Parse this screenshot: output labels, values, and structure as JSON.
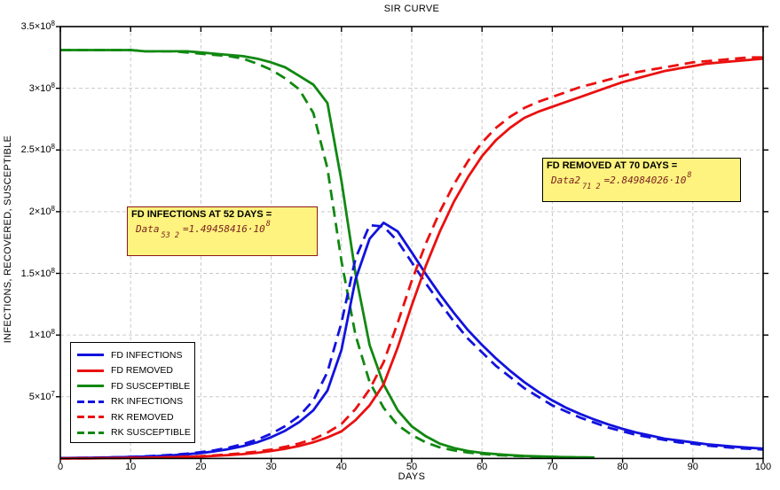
{
  "title": "SIR CURVE",
  "axes": {
    "x_label": "DAYS",
    "y_label": "INFECTIONS, RECOVERED, SUSCEPTIBLE",
    "x_ticks": [
      0,
      10,
      20,
      30,
      40,
      50,
      60,
      70,
      80,
      90,
      100
    ],
    "y_ticks": [
      {
        "value": 0.5,
        "mantissa": "5×10",
        "exponent": "7"
      },
      {
        "value": 1.0,
        "mantissa": "1×10",
        "exponent": "8"
      },
      {
        "value": 1.5,
        "mantissa": "1.5×10",
        "exponent": "8"
      },
      {
        "value": 2.0,
        "mantissa": "2×10",
        "exponent": "8"
      },
      {
        "value": 2.5,
        "mantissa": "2.5×10",
        "exponent": "8"
      },
      {
        "value": 3.0,
        "mantissa": "3×10",
        "exponent": "8"
      },
      {
        "value": 3.5,
        "mantissa": "3.5×10",
        "exponent": "8"
      }
    ]
  },
  "colors": {
    "blue": "#1212dd",
    "red": "#ea1010",
    "green": "#118811",
    "grid": "#c9c9c9",
    "axis": "#000000",
    "highlight": "#fdf37e",
    "note1_border": "#8b1a1a",
    "note2_border": "#000000",
    "equation_text": "#7a1f1f"
  },
  "legend": {
    "items": [
      {
        "label": "FD INFECTIONS",
        "series": 3
      },
      {
        "label": "FD REMOVED",
        "series": 5
      },
      {
        "label": "FD SUSCEPTIBLE",
        "series": 0
      },
      {
        "label": "RK INFECTIONS",
        "series": 2
      },
      {
        "label": "RK REMOVED",
        "series": 4
      },
      {
        "label": "RK SUSCEPTIBLE",
        "series": 1
      }
    ]
  },
  "annotations": [
    {
      "title": "FD INFECTIONS AT 52 DAYS =",
      "variable": "Data",
      "subscript": "53 2",
      "equals": "=",
      "value": "1.49458416·10",
      "exponent": "8"
    },
    {
      "title": "FD REMOVED AT 70 DAYS =",
      "variable": "Data2",
      "subscript": "71 2",
      "equals": "=",
      "value": "2.84984026·10",
      "exponent": "8"
    }
  ],
  "chart_data": {
    "type": "line",
    "title": "SIR CURVE",
    "xlabel": "DAYS",
    "ylabel": "INFECTIONS, RECOVERED, SUSCEPTIBLE",
    "xlim": [
      0,
      100
    ],
    "ylim_units_1e8": [
      0,
      3.5
    ],
    "y_unit_scale": 100000000.0,
    "grid": true,
    "legend_position": "lower-left",
    "series": [
      {
        "name": "FD SUSCEPTIBLE",
        "color": "#118811",
        "style": "solid",
        "x_start": 0,
        "x_step": 2,
        "y": [
          3.31,
          3.31,
          3.31,
          3.31,
          3.31,
          3.31,
          3.3,
          3.3,
          3.3,
          3.3,
          3.29,
          3.28,
          3.27,
          3.26,
          3.24,
          3.21,
          3.17,
          3.1,
          3.03,
          2.88,
          2.25,
          1.5,
          0.92,
          0.6,
          0.39,
          0.26,
          0.18,
          0.12,
          0.085,
          0.06,
          0.045,
          0.035,
          0.027,
          0.021,
          0.017,
          0.014,
          0.011,
          0.009,
          0.008
        ]
      },
      {
        "name": "RK SUSCEPTIBLE",
        "color": "#118811",
        "style": "dashed",
        "x_start": 0,
        "x_step": 2,
        "y": [
          3.31,
          3.31,
          3.31,
          3.31,
          3.31,
          3.31,
          3.3,
          3.3,
          3.3,
          3.29,
          3.28,
          3.27,
          3.26,
          3.24,
          3.2,
          3.15,
          3.08,
          2.99,
          2.8,
          2.35,
          1.6,
          1.0,
          0.62,
          0.41,
          0.27,
          0.19,
          0.13,
          0.09,
          0.065,
          0.048,
          0.037,
          0.028,
          0.022,
          0.018,
          0.014,
          0.012,
          0.01,
          0.008,
          0.007
        ]
      },
      {
        "name": "RK INFECTIONS",
        "color": "#1212dd",
        "style": "dashed",
        "x_start": 0,
        "x_step": 2,
        "y": [
          0.003,
          0.004,
          0.006,
          0.008,
          0.01,
          0.013,
          0.017,
          0.023,
          0.03,
          0.039,
          0.051,
          0.067,
          0.088,
          0.116,
          0.152,
          0.2,
          0.262,
          0.345,
          0.47,
          0.7,
          1.1,
          1.62,
          1.89,
          1.88,
          1.76,
          1.59,
          1.42,
          1.26,
          1.11,
          0.97,
          0.86,
          0.75,
          0.66,
          0.57,
          0.5,
          0.43,
          0.38,
          0.33,
          0.29,
          0.25,
          0.22,
          0.19,
          0.17,
          0.15,
          0.13,
          0.12,
          0.105,
          0.095,
          0.085,
          0.078,
          0.072
        ]
      },
      {
        "name": "FD INFECTIONS",
        "color": "#1212dd",
        "style": "solid",
        "x_start": 0,
        "x_step": 2,
        "y": [
          0.003,
          0.004,
          0.005,
          0.007,
          0.009,
          0.012,
          0.015,
          0.02,
          0.026,
          0.034,
          0.044,
          0.058,
          0.076,
          0.1,
          0.131,
          0.172,
          0.225,
          0.295,
          0.39,
          0.55,
          0.88,
          1.45,
          1.78,
          1.91,
          1.84,
          1.67,
          1.494,
          1.33,
          1.18,
          1.04,
          0.92,
          0.81,
          0.71,
          0.62,
          0.54,
          0.47,
          0.41,
          0.36,
          0.315,
          0.275,
          0.24,
          0.21,
          0.185,
          0.16,
          0.145,
          0.13,
          0.115,
          0.105,
          0.095,
          0.087,
          0.08
        ]
      },
      {
        "name": "RK REMOVED",
        "color": "#ea1010",
        "style": "dashed",
        "x_start": 0,
        "x_step": 2,
        "y": [
          0.0,
          0.001,
          0.002,
          0.002,
          0.003,
          0.005,
          0.006,
          0.008,
          0.011,
          0.015,
          0.019,
          0.025,
          0.033,
          0.043,
          0.056,
          0.072,
          0.094,
          0.121,
          0.157,
          0.21,
          0.28,
          0.4,
          0.56,
          0.78,
          1.1,
          1.44,
          1.74,
          2.0,
          2.22,
          2.41,
          2.56,
          2.68,
          2.77,
          2.84,
          2.89,
          2.93,
          2.97,
          3.01,
          3.04,
          3.07,
          3.1,
          3.13,
          3.15,
          3.17,
          3.19,
          3.21,
          3.22,
          3.23,
          3.24,
          3.25,
          3.25
        ]
      },
      {
        "name": "FD REMOVED",
        "color": "#ea1010",
        "style": "solid",
        "x_start": 0,
        "x_step": 2,
        "y": [
          0.0,
          0.001,
          0.001,
          0.002,
          0.003,
          0.004,
          0.005,
          0.007,
          0.009,
          0.012,
          0.016,
          0.021,
          0.027,
          0.035,
          0.046,
          0.06,
          0.078,
          0.101,
          0.131,
          0.17,
          0.22,
          0.31,
          0.43,
          0.6,
          0.9,
          1.24,
          1.56,
          1.84,
          2.08,
          2.28,
          2.45,
          2.58,
          2.68,
          2.76,
          2.81,
          2.85,
          2.89,
          2.93,
          2.97,
          3.01,
          3.05,
          3.08,
          3.11,
          3.14,
          3.16,
          3.18,
          3.2,
          3.21,
          3.22,
          3.23,
          3.24
        ]
      }
    ]
  }
}
